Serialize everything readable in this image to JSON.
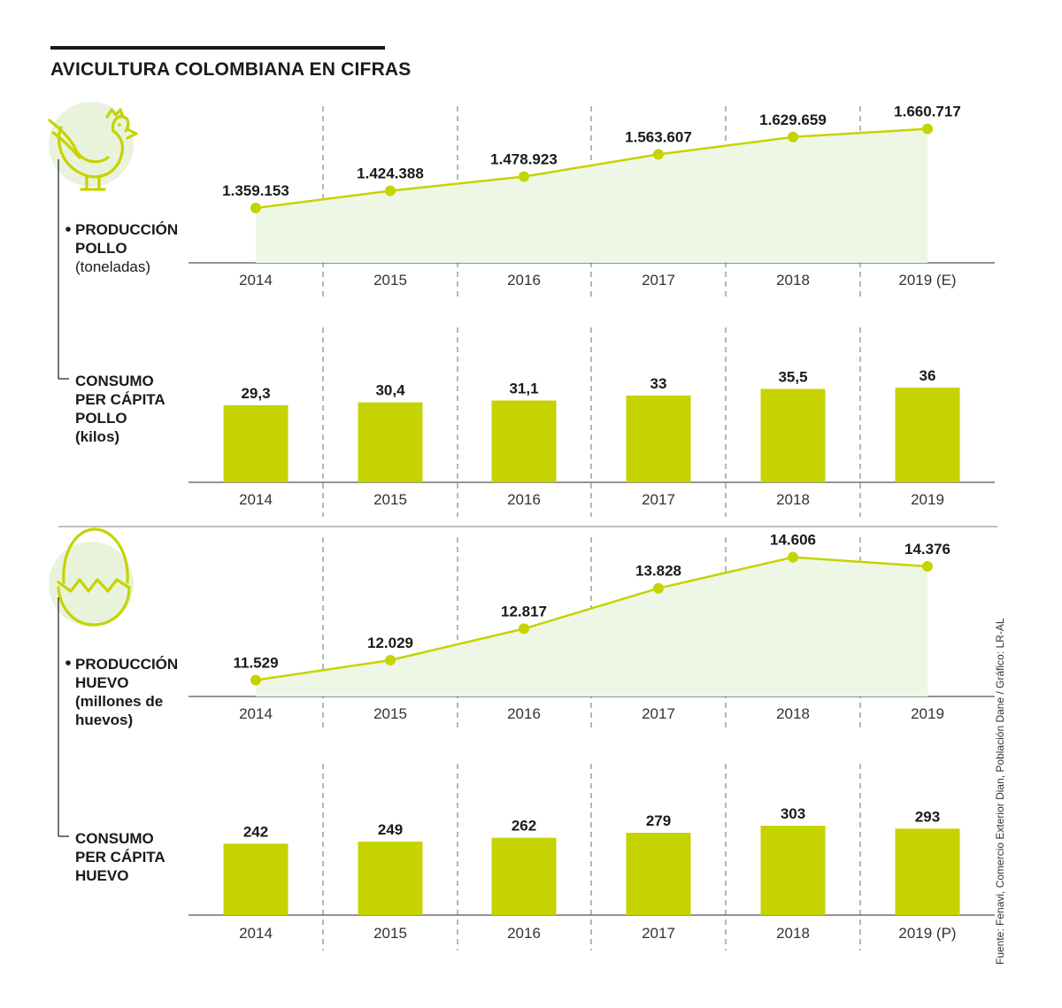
{
  "title": "AVICULTURA COLOMBIANA EN CIFRAS",
  "source": "Fuente: Fenavi, Comercio Exterior Dian, Población Dane / Gráfico: LR-AL",
  "colors": {
    "accent": "#c5d300",
    "area": "#eef6e5",
    "icon_bg": "#e9f3dc",
    "text": "#1a1a1a",
    "grid": "#6e6e6e"
  },
  "icons": {
    "chicken": "chicken-icon",
    "egg": "egg-icon"
  },
  "labels": {
    "pollo_prod": {
      "bold": "PRODUCCIÓN\nPOLLO",
      "unit": "(toneladas)"
    },
    "pollo_cons": {
      "bold": "CONSUMO\nPER CÁPITA\nPOLLO",
      "unit": "(kilos)"
    },
    "huevo_prod": {
      "bold": "PRODUCCIÓN\nHUEVO",
      "unit": "(millones de\nhuevos)"
    },
    "huevo_cons": {
      "bold": "CONSUMO\nPER CÁPITA\nHUEVO",
      "unit": ""
    }
  },
  "chart_data": [
    {
      "type": "area",
      "name": "pollo_produccion",
      "categories": [
        "2014",
        "2015",
        "2016",
        "2017",
        "2018",
        "2019 (E)"
      ],
      "values": [
        1359153,
        1424388,
        1478923,
        1563607,
        1629659,
        1660717
      ],
      "value_labels": [
        "1.359.153",
        "1.424.388",
        "1.478.923",
        "1.563.607",
        "1.629.659",
        "1.660.717"
      ],
      "ylim": [
        1150000,
        1720000
      ]
    },
    {
      "type": "bar",
      "name": "pollo_consumo",
      "categories": [
        "2014",
        "2015",
        "2016",
        "2017",
        "2018",
        "2019"
      ],
      "values": [
        29.3,
        30.4,
        31.1,
        33,
        35.5,
        36
      ],
      "value_labels": [
        "29,3",
        "30,4",
        "31,1",
        "33",
        "35,5",
        "36"
      ],
      "ylim": [
        0,
        36
      ]
    },
    {
      "type": "area",
      "name": "huevo_produccion",
      "categories": [
        "2014",
        "2015",
        "2016",
        "2017",
        "2018",
        "2019"
      ],
      "values": [
        11529,
        12029,
        12817,
        13828,
        14606,
        14376
      ],
      "value_labels": [
        "11.529",
        "12.029",
        "12.817",
        "13.828",
        "14.606",
        "14.376"
      ],
      "ylim": [
        11120,
        14930
      ]
    },
    {
      "type": "bar",
      "name": "huevo_consumo",
      "categories": [
        "2014",
        "2015",
        "2016",
        "2017",
        "2018",
        "2019 (P)"
      ],
      "values": [
        242,
        249,
        262,
        279,
        303,
        293
      ],
      "value_labels": [
        "242",
        "249",
        "262",
        "279",
        "303",
        "293"
      ],
      "ylim": [
        0,
        303
      ]
    }
  ]
}
